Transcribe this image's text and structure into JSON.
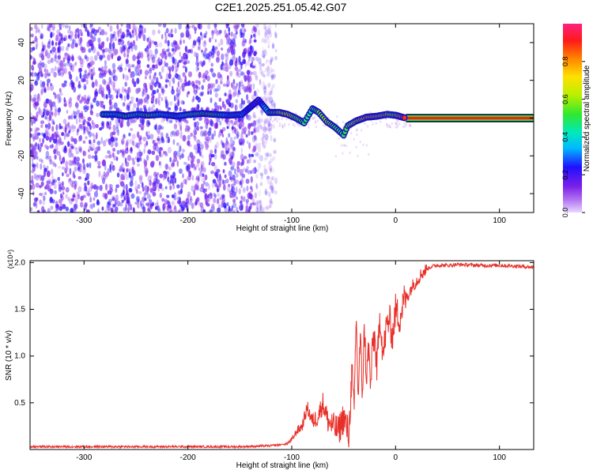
{
  "title": "C2E1.2025.251.05.42.G07",
  "colors": {
    "snr_line": "#e8302a",
    "spectrum_scatter": "#7a1fe8",
    "frame": "#000000",
    "background": "#ffffff"
  },
  "chart_data": [
    {
      "type": "heatmap",
      "name": "spectrogram",
      "xlabel": "Height of straight line (km)",
      "ylabel": "Frequency (Hz)",
      "xlim": [
        -352,
        133
      ],
      "ylim": [
        -50,
        50
      ],
      "xticks": [
        -300,
        -200,
        -100,
        0,
        100
      ],
      "xtick_labels": [
        "-300",
        "-200",
        "-100",
        "0",
        "100"
      ],
      "yticks": [
        -40,
        -20,
        0,
        20,
        40
      ],
      "ytick_labels": [
        "-40",
        "-20",
        "0",
        "20",
        "40"
      ],
      "colorbar": {
        "label": "Normalized spectral amplitude",
        "range": [
          0,
          1
        ],
        "ticks": [
          0.0,
          0.2,
          0.4,
          0.6,
          0.8
        ],
        "tick_labels": [
          "0.0",
          "0.2",
          "0.4",
          "0.6",
          "0.8"
        ]
      },
      "noise_region": {
        "x_from": -352,
        "x_to": -125,
        "freq_from": -50,
        "freq_to": 50,
        "amplitude": [
          0.05,
          0.25
        ]
      },
      "ridge": [
        {
          "x": -282,
          "f": 2,
          "a": 0.45
        },
        {
          "x": -270,
          "f": 2,
          "a": 0.35
        },
        {
          "x": -260,
          "f": 1,
          "a": 0.5
        },
        {
          "x": -248,
          "f": 2,
          "a": 0.4
        },
        {
          "x": -238,
          "f": 1.5,
          "a": 0.55
        },
        {
          "x": -226,
          "f": 2,
          "a": 0.35
        },
        {
          "x": -210,
          "f": 1,
          "a": 0.3
        },
        {
          "x": -198,
          "f": 2,
          "a": 0.45
        },
        {
          "x": -186,
          "f": 2.5,
          "a": 0.5
        },
        {
          "x": -176,
          "f": 2,
          "a": 0.55
        },
        {
          "x": -160,
          "f": 1.5,
          "a": 0.3
        },
        {
          "x": -148,
          "f": 2,
          "a": 0.3
        },
        {
          "x": -132,
          "f": 9.5,
          "a": 0.15
        },
        {
          "x": -122,
          "f": 3,
          "a": 0.45
        },
        {
          "x": -112,
          "f": 3,
          "a": 0.6
        },
        {
          "x": -104,
          "f": 2,
          "a": 0.65
        },
        {
          "x": -96,
          "f": 0,
          "a": 0.55
        },
        {
          "x": -88,
          "f": -2.5,
          "a": 0.5
        },
        {
          "x": -80,
          "f": 5,
          "a": 0.45
        },
        {
          "x": -74,
          "f": 3,
          "a": 0.55
        },
        {
          "x": -66,
          "f": -2,
          "a": 0.6
        },
        {
          "x": -58,
          "f": -5,
          "a": 0.5
        },
        {
          "x": -50,
          "f": -9,
          "a": 0.5
        },
        {
          "x": -46,
          "f": -4,
          "a": 0.55
        },
        {
          "x": -38,
          "f": -1.5,
          "a": 0.6
        },
        {
          "x": -28,
          "f": 0.5,
          "a": 0.75
        },
        {
          "x": -18,
          "f": 1,
          "a": 0.7
        },
        {
          "x": -8,
          "f": 2,
          "a": 0.6
        },
        {
          "x": 0,
          "f": 1.5,
          "a": 0.55
        },
        {
          "x": 10,
          "f": 0,
          "a": 0.95
        },
        {
          "x": 50,
          "f": 0,
          "a": 0.95
        },
        {
          "x": 90,
          "f": 0,
          "a": 0.95
        },
        {
          "x": 133,
          "f": 0,
          "a": 0.95
        }
      ]
    },
    {
      "type": "line",
      "name": "snr",
      "xlabel": "Height of straight line (km)",
      "ylabel": "SNR (10 * v/v)",
      "scale_label": "(x10⁴)",
      "xlim": [
        -352,
        133
      ],
      "ylim": [
        0,
        2.02
      ],
      "xticks": [
        -300,
        -200,
        -100,
        0,
        100
      ],
      "xtick_labels": [
        "-300",
        "-200",
        "-100",
        "0",
        "100"
      ],
      "yticks": [
        0.5,
        1.0,
        1.5,
        2.0
      ],
      "ytick_labels": [
        "0.5",
        "1.0",
        "1.5",
        "2.0"
      ],
      "series": [
        {
          "name": "SNR",
          "x": [
            -352,
            -300,
            -250,
            -200,
            -150,
            -120,
            -105,
            -100,
            -95,
            -90,
            -85,
            -80,
            -75,
            -70,
            -65,
            -60,
            -55,
            -50,
            -45,
            -42,
            -40,
            -38,
            -36,
            -34,
            -32,
            -30,
            -28,
            -26,
            -24,
            -22,
            -20,
            -18,
            -15,
            -12,
            -9,
            -6,
            -3,
            0,
            4,
            8,
            12,
            16,
            20,
            25,
            30,
            35,
            40,
            50,
            60,
            80,
            100,
            120,
            133
          ],
          "y": [
            0.03,
            0.03,
            0.03,
            0.03,
            0.03,
            0.04,
            0.06,
            0.1,
            0.2,
            0.25,
            0.45,
            0.3,
            0.35,
            0.5,
            0.3,
            0.25,
            0.2,
            0.35,
            0.15,
            0.85,
            0.35,
            1.45,
            0.55,
            1.2,
            0.6,
            1.3,
            0.75,
            1.1,
            0.65,
            1.15,
            1.2,
            0.85,
            1.45,
            1.0,
            1.3,
            1.4,
            1.2,
            1.5,
            1.4,
            1.6,
            1.65,
            1.75,
            1.8,
            1.88,
            1.93,
            1.96,
            1.97,
            1.97,
            1.98,
            1.97,
            1.97,
            1.96,
            1.95
          ]
        }
      ]
    }
  ]
}
